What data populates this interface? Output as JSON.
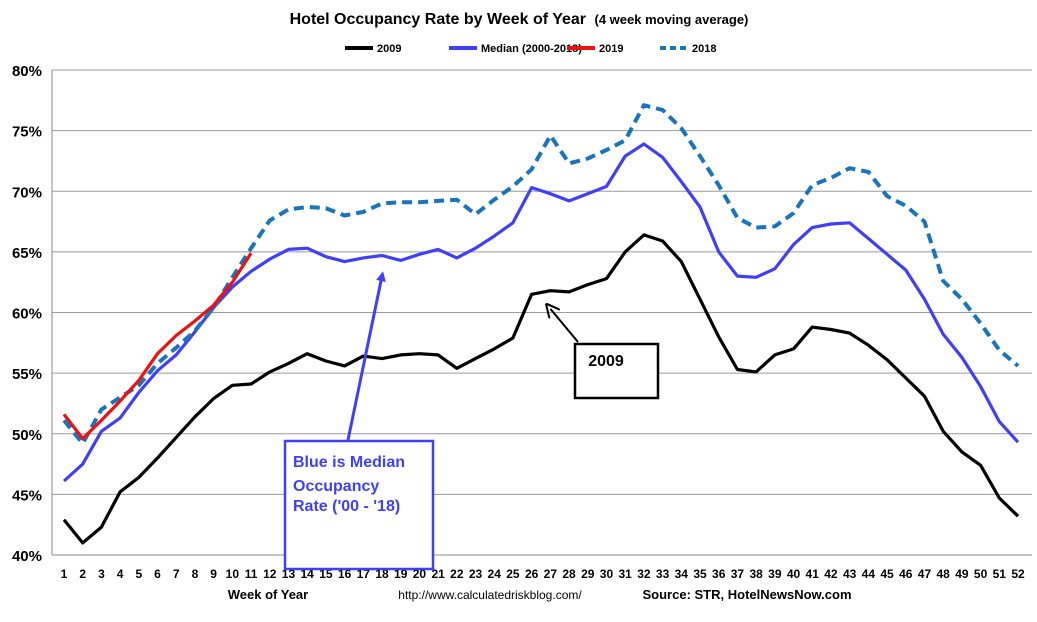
{
  "chart_data": {
    "type": "line",
    "title": "Hotel Occupancy Rate by  Week of Year",
    "subtitle": "(4 week moving average)",
    "xlabel": "Week of Year",
    "ylabel": "",
    "ylim": [
      40,
      80
    ],
    "yticks": [
      "40%",
      "45%",
      "50%",
      "55%",
      "60%",
      "65%",
      "70%",
      "75%",
      "80%"
    ],
    "x": [
      1,
      2,
      3,
      4,
      5,
      6,
      7,
      8,
      9,
      10,
      11,
      12,
      13,
      14,
      15,
      16,
      17,
      18,
      19,
      20,
      21,
      22,
      23,
      24,
      25,
      26,
      27,
      28,
      29,
      30,
      31,
      32,
      33,
      34,
      35,
      36,
      37,
      38,
      39,
      40,
      41,
      42,
      43,
      44,
      45,
      46,
      47,
      48,
      49,
      50,
      51,
      52
    ],
    "grid": true,
    "legend_position": "top",
    "series": [
      {
        "name": "2009",
        "color": "#000000",
        "style": "solid",
        "values": [
          42.9,
          41.0,
          42.3,
          45.2,
          46.4,
          48.0,
          49.7,
          51.4,
          52.9,
          54.0,
          54.1,
          55.1,
          55.8,
          56.6,
          56.0,
          55.6,
          56.4,
          56.2,
          56.5,
          56.6,
          56.5,
          55.4,
          56.2,
          57.0,
          57.9,
          61.5,
          61.8,
          61.7,
          62.3,
          62.8,
          65.0,
          66.4,
          65.9,
          64.2,
          61.1,
          58.0,
          55.3,
          55.1,
          56.5,
          57.0,
          58.8,
          58.6,
          58.3,
          57.3,
          56.1,
          54.6,
          53.1,
          50.2,
          48.5,
          47.4,
          44.7,
          43.2
        ]
      },
      {
        "name": "Median (2000-2018)",
        "color": "#3f3ff7",
        "style": "solid",
        "values": [
          46.1,
          47.5,
          50.2,
          51.3,
          53.4,
          55.2,
          56.5,
          58.4,
          60.4,
          62.1,
          63.4,
          64.4,
          65.2,
          65.3,
          64.6,
          64.2,
          64.5,
          64.7,
          64.3,
          64.8,
          65.2,
          64.5,
          65.3,
          66.3,
          67.4,
          70.3,
          69.8,
          69.2,
          69.8,
          70.4,
          72.9,
          73.9,
          72.8,
          70.8,
          68.7,
          65.0,
          63.0,
          62.9,
          63.6,
          65.6,
          67.0,
          67.3,
          67.4,
          66.1,
          64.8,
          63.5,
          61.1,
          58.2,
          56.3,
          53.9,
          51.0,
          49.3
        ]
      },
      {
        "name": "2019",
        "color": "#ee1111",
        "style": "solid",
        "values": [
          51.6,
          49.6,
          51.1,
          52.7,
          54.4,
          56.6,
          58.1,
          59.3,
          60.6,
          62.5,
          64.9,
          null,
          null,
          null,
          null,
          null,
          null,
          null,
          null,
          null,
          null,
          null,
          null,
          null,
          null,
          null,
          null,
          null,
          null,
          null,
          null,
          null,
          null,
          null,
          null,
          null,
          null,
          null,
          null,
          null,
          null,
          null,
          null,
          null,
          null,
          null,
          null,
          null,
          null,
          null,
          null,
          null
        ]
      },
      {
        "name": "2018",
        "color": "#1a73bd",
        "style": "dashed",
        "values": [
          51.1,
          49.2,
          52.0,
          53.0,
          54.0,
          55.8,
          57.1,
          58.5,
          60.4,
          62.9,
          65.3,
          67.6,
          68.5,
          68.7,
          68.6,
          68.0,
          68.3,
          69.0,
          69.1,
          69.1,
          69.2,
          69.3,
          68.1,
          69.3,
          70.4,
          71.8,
          74.6,
          72.3,
          72.7,
          73.4,
          74.2,
          77.1,
          76.7,
          75.2,
          72.9,
          70.5,
          67.8,
          67.0,
          67.1,
          68.2,
          70.5,
          71.1,
          71.9,
          71.6,
          69.6,
          68.8,
          67.5,
          62.6,
          61.1,
          59.1,
          56.9,
          55.6
        ]
      }
    ],
    "annotations": [
      {
        "text": "2009",
        "points_to_week": 27,
        "points_to_value": 60.3
      },
      {
        "lines": [
          "Blue is Median",
          "Occupancy",
          "Rate ('00 - '18)"
        ],
        "points_to_week": 18,
        "points_to_value": 63.0
      }
    ],
    "footer": {
      "url": "http://www.calculatedriskblog.com/",
      "source": "Source: STR, HotelNewsNow.com"
    }
  }
}
